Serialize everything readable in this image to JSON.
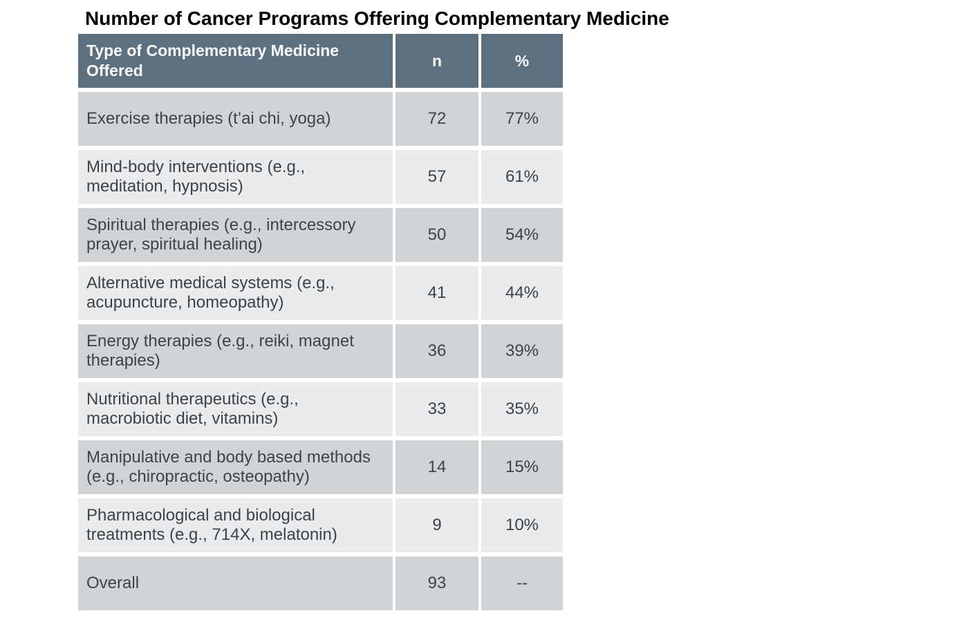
{
  "title": "Number of Cancer Programs Offering Complementary Medicine",
  "colors": {
    "header_bg": "#5d7080",
    "header_text": "#fafbfb",
    "row_dark_bg": "#d1d4d7",
    "row_light_bg": "#e9ebed",
    "cell_text": "#3e4347",
    "title_text": "#000000",
    "page_bg": "#ffffff"
  },
  "table": {
    "header": {
      "type_label": "Type of Complementary Medicine Offered",
      "n_label": "n",
      "pct_label": "%"
    },
    "rows": [
      {
        "label": "Exercise therapies (t’ai chi, yoga)",
        "n": "72",
        "pct": "77%"
      },
      {
        "label": "Mind-body interventions (e.g., meditation, hypnosis)",
        "n": "57",
        "pct": "61%"
      },
      {
        "label": "Spiritual therapies (e.g., intercessory prayer, spiritual healing)",
        "n": "50",
        "pct": "54%"
      },
      {
        "label": "Alternative medical systems (e.g., acupuncture, homeopathy)",
        "n": "41",
        "pct": "44%"
      },
      {
        "label": "Energy therapies (e.g., reiki, magnet therapies)",
        "n": "36",
        "pct": "39%"
      },
      {
        "label": "Nutritional therapeutics (e.g., macrobiotic diet, vitamins)",
        "n": "33",
        "pct": "35%"
      },
      {
        "label": "Manipulative and body based methods (e.g., chiropractic, osteopathy)",
        "n": "14",
        "pct": "15%"
      },
      {
        "label": "Pharmacological and biological treatments (e.g., 714X, melatonin)",
        "n": "9",
        "pct": "10%"
      },
      {
        "label": "Overall",
        "n": "93",
        "pct": "--"
      }
    ]
  },
  "chart_data": {
    "type": "table",
    "title": "Number of Cancer Programs Offering Complementary Medicine",
    "columns": [
      "Type of Complementary Medicine Offered",
      "n",
      "%"
    ],
    "rows": [
      [
        "Exercise therapies (t’ai chi, yoga)",
        72,
        "77%"
      ],
      [
        "Mind-body interventions (e.g., meditation, hypnosis)",
        57,
        "61%"
      ],
      [
        "Spiritual therapies (e.g., intercessory prayer, spiritual healing)",
        50,
        "54%"
      ],
      [
        "Alternative medical systems (e.g., acupuncture, homeopathy)",
        41,
        "44%"
      ],
      [
        "Energy therapies (e.g., reiki, magnet therapies)",
        36,
        "39%"
      ],
      [
        "Nutritional therapeutics (e.g., macrobiotic diet, vitamins)",
        33,
        "35%"
      ],
      [
        "Manipulative and body based methods (e.g., chiropractic, osteopathy)",
        14,
        "15%"
      ],
      [
        "Pharmacological and biological treatments (e.g., 714X, melatonin)",
        9,
        "10%"
      ],
      [
        "Overall",
        93,
        null
      ]
    ]
  }
}
